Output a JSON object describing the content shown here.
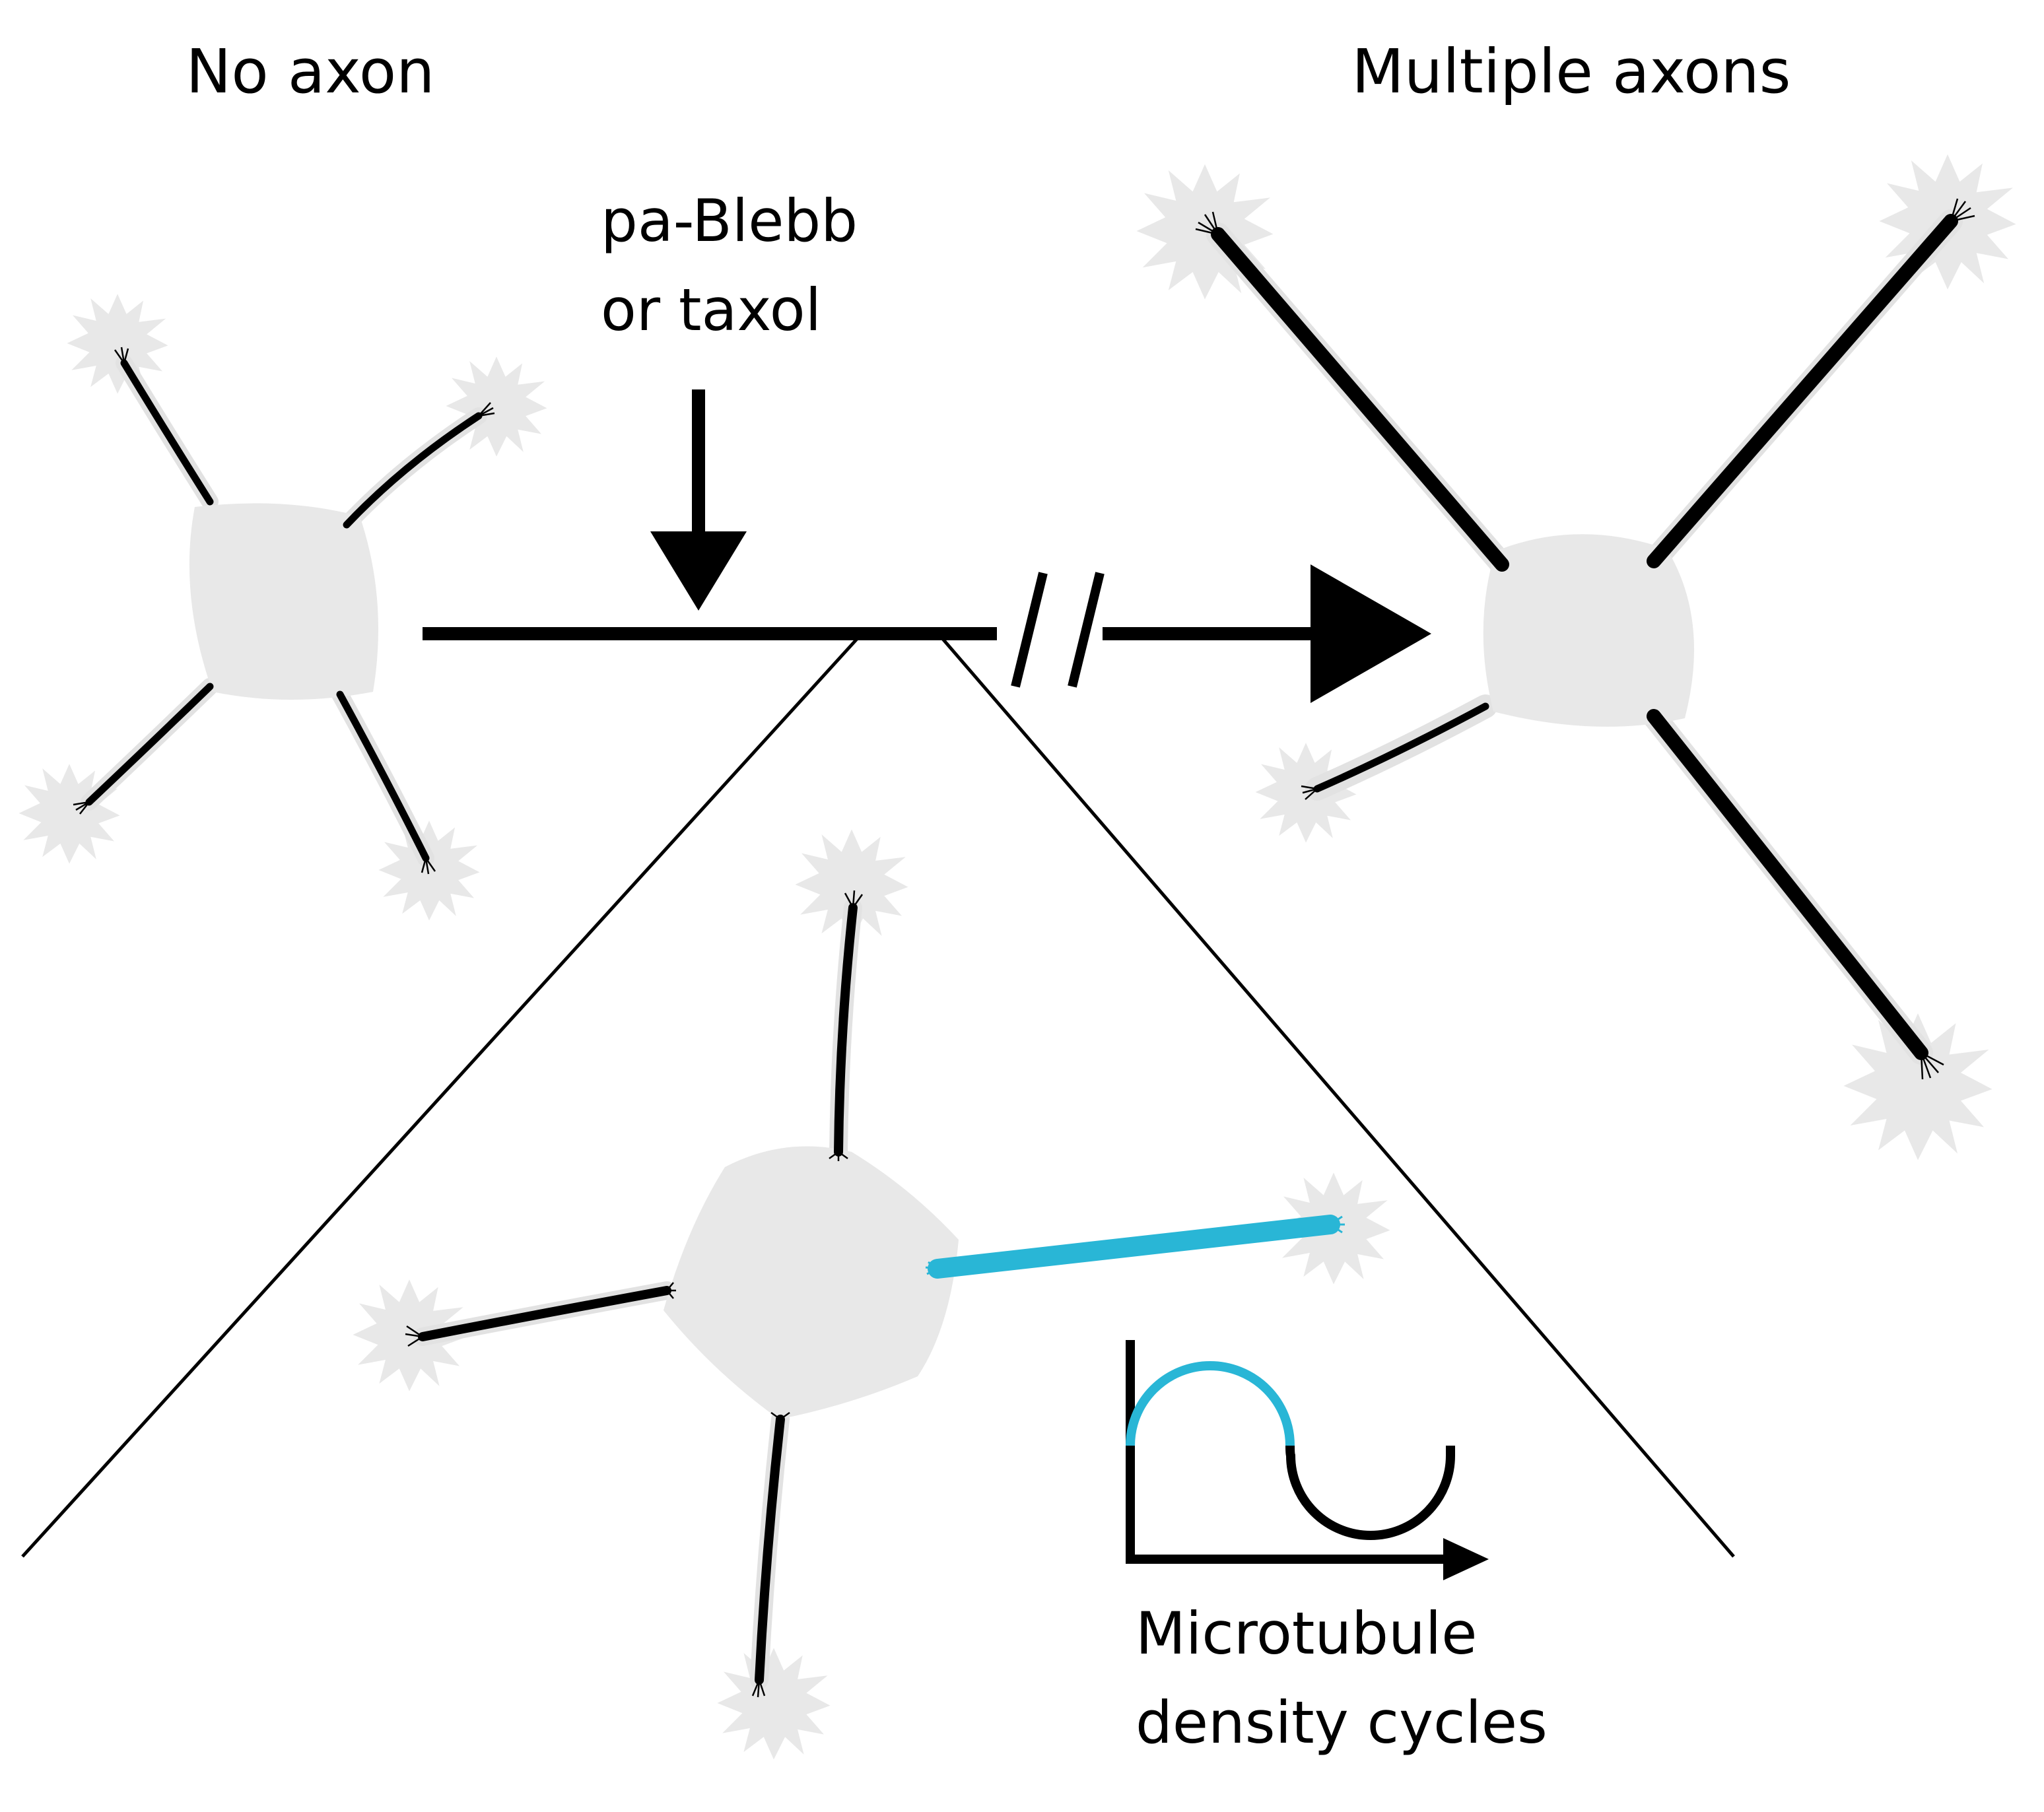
{
  "labels": {
    "no_axon": "No axon",
    "multiple_axons": "Multiple axons",
    "treatment_line1": "pa-Blebb",
    "treatment_line2": "or taxol",
    "graph_line1": "Microtubule",
    "graph_line2": "density cycles"
  },
  "colors": {
    "cell": "#e8e8e8",
    "neurite": "#000000",
    "axon_highlight": "#29b6d6",
    "background": "#ffffff"
  }
}
